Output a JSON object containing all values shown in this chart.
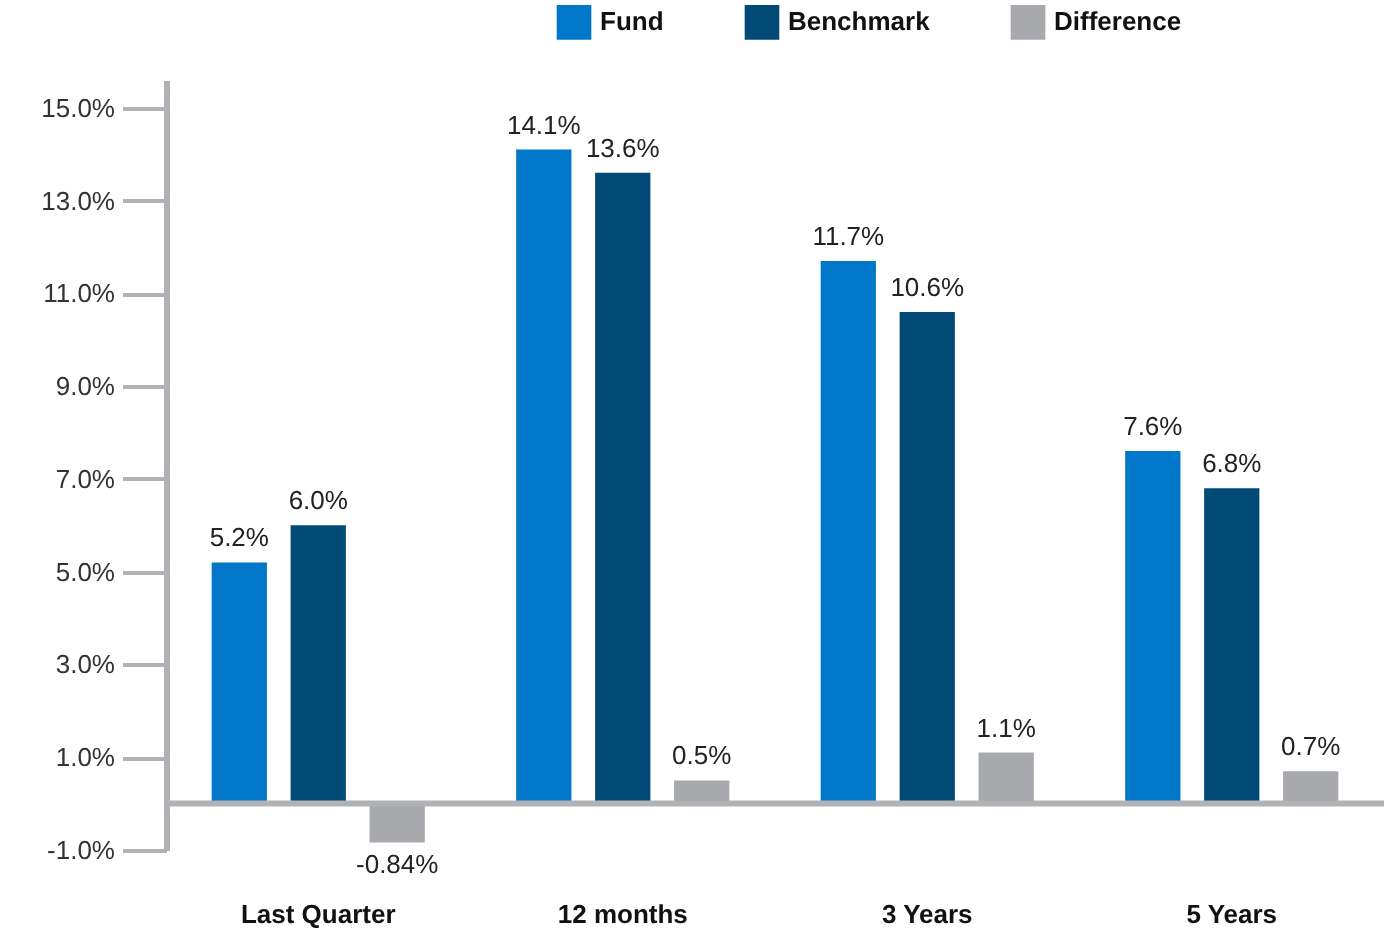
{
  "chart_data": {
    "type": "bar",
    "categories": [
      "Last Quarter",
      "12 months",
      "3 Years",
      "5 Years"
    ],
    "series": [
      {
        "name": "Fund",
        "color": "#0077c8",
        "values": [
          5.2,
          14.1,
          11.7,
          7.6
        ],
        "value_labels": [
          "5.2%",
          "14.1%",
          "11.7%",
          "7.6%"
        ]
      },
      {
        "name": "Benchmark",
        "color": "#004a75",
        "values": [
          6.0,
          13.6,
          10.6,
          6.8
        ],
        "value_labels": [
          "6.0%",
          "13.6%",
          "10.6%",
          "6.8%"
        ]
      },
      {
        "name": "Difference",
        "color": "#a7a9ac",
        "values": [
          -0.84,
          0.5,
          1.1,
          0.7
        ],
        "value_labels": [
          "-0.84%",
          "0.5%",
          "1.1%",
          "0.7%"
        ]
      }
    ],
    "ylim": [
      -1,
      15.6
    ],
    "yticks": [
      {
        "value": -1,
        "label": "-1.0%"
      },
      {
        "value": 1,
        "label": "1.0%"
      },
      {
        "value": 3,
        "label": "3.0%"
      },
      {
        "value": 5,
        "label": "5.0%"
      },
      {
        "value": 7,
        "label": "7.0%"
      },
      {
        "value": 9,
        "label": "9.0%"
      },
      {
        "value": 11,
        "label": "11.0%"
      },
      {
        "value": 13,
        "label": "13.0%"
      },
      {
        "value": 15,
        "label": "15.0%"
      }
    ],
    "ref_lines": [
      {
        "axis": "y",
        "value": 0,
        "color": "#b0b2b5"
      }
    ],
    "grid": false,
    "legend": "top"
  }
}
